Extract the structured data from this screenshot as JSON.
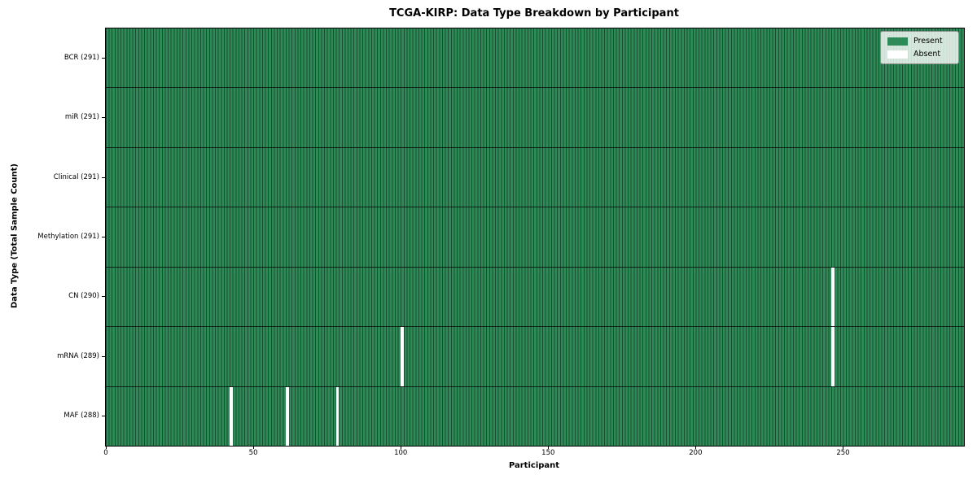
{
  "chart_data": {
    "type": "heatmap",
    "title": "TCGA-KIRP: Data Type Breakdown by Participant",
    "xlabel": "Participant",
    "ylabel": "Data Type (Total Sample Count)",
    "n_participants": 291,
    "x_range": [
      0,
      291
    ],
    "x_ticks": [
      0,
      50,
      100,
      150,
      200,
      250
    ],
    "grid": "cell-edges",
    "legend_position": "upper right",
    "rows": [
      {
        "name": "bcr",
        "label": "BCR (291)",
        "total_samples": 291,
        "absent_participants": []
      },
      {
        "name": "mir",
        "label": "miR (291)",
        "total_samples": 291,
        "absent_participants": []
      },
      {
        "name": "clinical",
        "label": "Clinical (291)",
        "total_samples": 291,
        "absent_participants": []
      },
      {
        "name": "methylation",
        "label": "Methylation (291)",
        "total_samples": 291,
        "absent_participants": []
      },
      {
        "name": "cn",
        "label": "CN (290)",
        "total_samples": 290,
        "absent_participants": [
          246
        ]
      },
      {
        "name": "mrna",
        "label": "mRNA (289)",
        "total_samples": 289,
        "absent_participants": [
          100,
          246
        ]
      },
      {
        "name": "maf",
        "label": "MAF (288)",
        "total_samples": 288,
        "absent_participants": [
          42,
          61,
          78
        ]
      }
    ],
    "legend": [
      {
        "label": "Present",
        "color": "#2e8b57"
      },
      {
        "label": "Absent",
        "color": "#ffffff"
      }
    ],
    "colors": {
      "present": "#2e8b57",
      "absent": "#ffffff",
      "cell_edge": "#194c30",
      "row_separator": "#1a1a1a",
      "axis_spine": "#000000"
    }
  }
}
